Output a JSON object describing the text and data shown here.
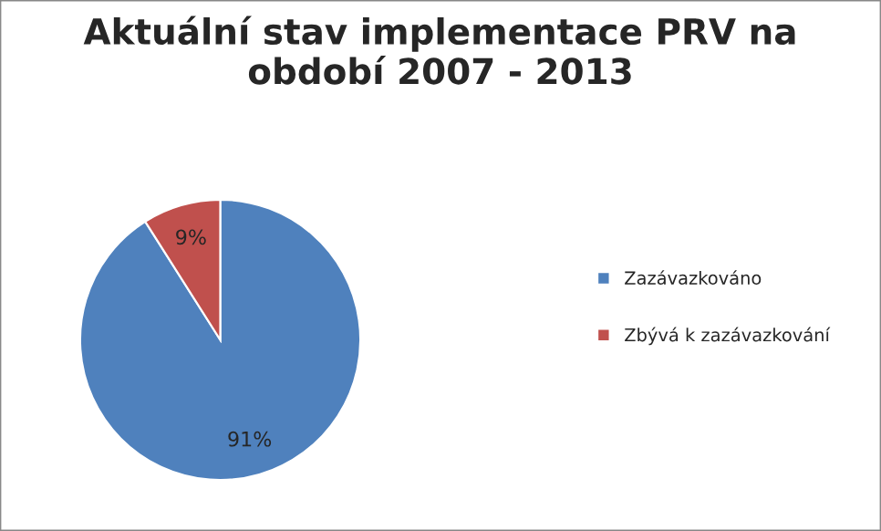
{
  "chart_data": {
    "type": "pie",
    "title": "Aktuální stav implementace PRV na\nobdobí 2007 - 2013",
    "categories": [
      "Zazávazkováno",
      "Zbývá k zazávazkování"
    ],
    "values": [
      91,
      9
    ],
    "colors": [
      "#4f81bd",
      "#c0504d"
    ],
    "value_labels": [
      "91%",
      "9%"
    ],
    "legend": "right"
  }
}
